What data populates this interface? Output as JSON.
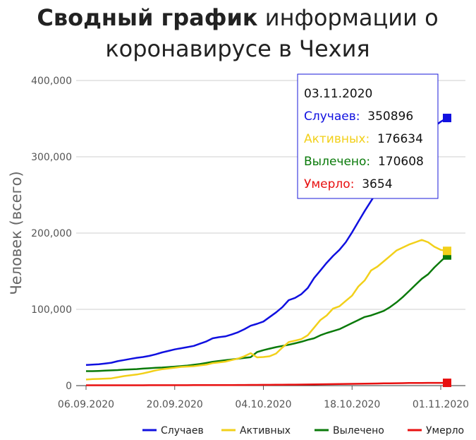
{
  "chart_data": {
    "type": "line",
    "title_bold": "Сводный график",
    "title_rest_line1": " информации о",
    "title_line2": "коронавирусе в Чехия",
    "ylabel": "Человек (всего)",
    "xlabel": "",
    "ylim": [
      0,
      400000
    ],
    "y_ticks": [
      0,
      100000,
      200000,
      300000,
      400000
    ],
    "y_tick_labels": [
      "0",
      "100,000",
      "200,000",
      "300,000",
      "400,000"
    ],
    "x_tick_labels": [
      "06.09.2020",
      "20.09.2020",
      "04.10.2020",
      "18.10.2020",
      "01.11.2020"
    ],
    "x_tick_days": [
      0,
      14,
      28,
      42,
      56
    ],
    "x_first": "06.09.2020",
    "x_last": "03.11.2020",
    "grid": true,
    "legend_position": "bottom",
    "series": [
      {
        "name": "Случаев",
        "color": "#1010e0",
        "values": [
          27000,
          27500,
          28000,
          29000,
          30000,
          32000,
          33500,
          35000,
          36500,
          37500,
          39000,
          41000,
          43500,
          45500,
          47500,
          49000,
          50500,
          52000,
          55000,
          58000,
          62000,
          63500,
          64500,
          67000,
          70000,
          74000,
          78500,
          81000,
          84000,
          90000,
          96000,
          103000,
          112000,
          115000,
          120000,
          128000,
          141000,
          151000,
          161000,
          170000,
          178000,
          188000,
          201000,
          215000,
          229000,
          242000,
          255000,
          265000,
          275000,
          285000,
          295000,
          305000,
          315000,
          324000,
          333000,
          340000,
          346000,
          350896
        ]
      },
      {
        "name": "Активных",
        "color": "#f2d01a",
        "values": [
          8000,
          8500,
          8800,
          9200,
          9500,
          11000,
          12500,
          13500,
          14500,
          16000,
          18000,
          20000,
          21500,
          22500,
          23500,
          24500,
          25000,
          25500,
          26500,
          27500,
          29500,
          30500,
          31500,
          33500,
          35500,
          38500,
          42500,
          37000,
          37500,
          38500,
          42000,
          50000,
          57000,
          59000,
          61000,
          66000,
          76000,
          86000,
          92000,
          101000,
          104000,
          111000,
          118000,
          130000,
          138000,
          151000,
          156000,
          163000,
          170000,
          177000,
          181000,
          185000,
          188000,
          191000,
          188000,
          182000,
          178000,
          176634
        ]
      },
      {
        "name": "Вылечено",
        "color": "#0a7a0a",
        "values": [
          19000,
          19000,
          19300,
          19600,
          20000,
          20400,
          20900,
          21300,
          21700,
          22300,
          22800,
          23300,
          23700,
          24300,
          24900,
          25600,
          26300,
          27300,
          28300,
          29800,
          31300,
          32300,
          33300,
          34300,
          35300,
          36300,
          37300,
          44000,
          46500,
          48500,
          50500,
          52000,
          53500,
          55500,
          57500,
          60000,
          62000,
          66000,
          69000,
          71500,
          74000,
          78000,
          82000,
          86000,
          90000,
          92000,
          95000,
          98000,
          103000,
          109000,
          116000,
          124000,
          132000,
          140000,
          146000,
          155000,
          163000,
          170608
        ]
      },
      {
        "name": "Умерло",
        "color": "#e81010",
        "values": [
          430,
          435,
          440,
          445,
          450,
          460,
          470,
          480,
          490,
          500,
          510,
          520,
          530,
          540,
          560,
          580,
          600,
          620,
          640,
          660,
          690,
          720,
          750,
          780,
          810,
          850,
          900,
          950,
          1000,
          1060,
          1120,
          1180,
          1250,
          1330,
          1420,
          1520,
          1620,
          1720,
          1840,
          1960,
          2080,
          2200,
          2320,
          2440,
          2560,
          2680,
          2800,
          2920,
          3040,
          3160,
          3280,
          3400,
          3480,
          3530,
          3570,
          3600,
          3630,
          3654
        ]
      }
    ],
    "tooltip": {
      "date": "03.11.2020",
      "rows": [
        {
          "label": "Случаев:",
          "value": "350896",
          "color": "#1010e0"
        },
        {
          "label": "Активных:",
          "value": "176634",
          "color": "#f2d01a"
        },
        {
          "label": "Вылечено:",
          "value": "170608",
          "color": "#0a7a0a"
        },
        {
          "label": "Умерло:",
          "value": "3654",
          "color": "#e81010"
        }
      ]
    }
  }
}
